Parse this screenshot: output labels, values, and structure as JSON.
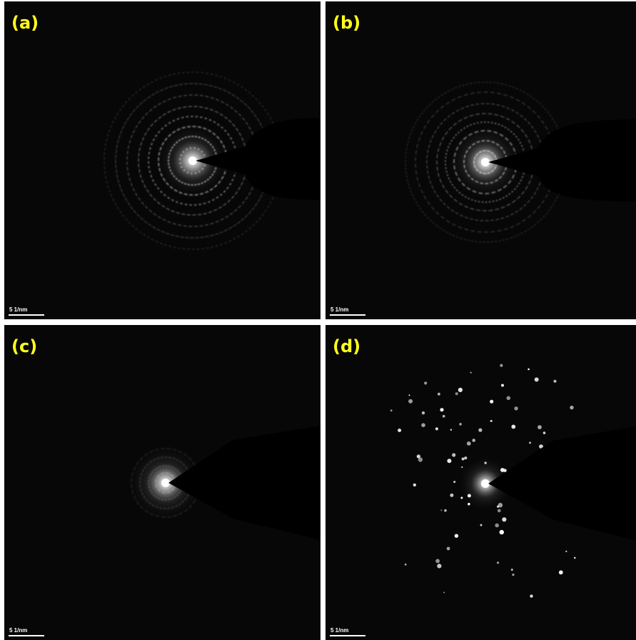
{
  "panels": [
    {
      "label": "(a)",
      "scale_bar": "5 1/nm"
    },
    {
      "label": "(b)",
      "scale_bar": "5 1/nm"
    },
    {
      "label": "(c)",
      "scale_bar": "5 1/nm"
    },
    {
      "label": "(d)",
      "scale_bar": "5 1/nm"
    }
  ]
}
